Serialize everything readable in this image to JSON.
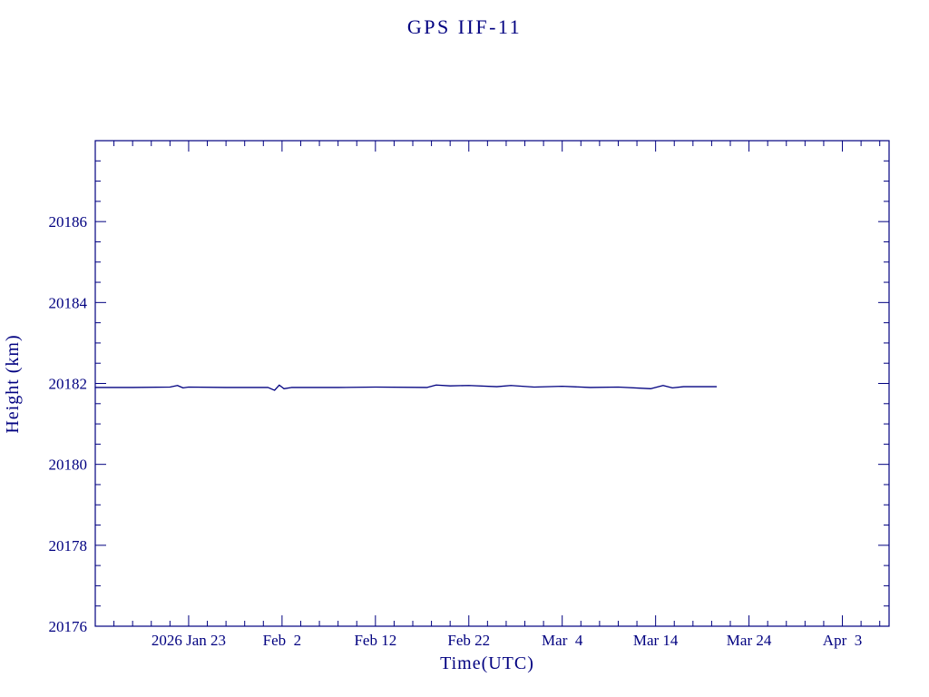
{
  "page": {
    "background": "#ffffff"
  },
  "chart_data": {
    "type": "line",
    "title": "GPS IIF-11",
    "xlabel": "Time(UTC)",
    "ylabel": "Height (km)",
    "line_color": "#000080",
    "axis_color": "#000080",
    "grid": false,
    "legend": "none",
    "xlim_days": [
      0,
      85
    ],
    "ylim": [
      20176,
      20188
    ],
    "x_axis": {
      "tick_days": [
        10,
        20,
        30,
        40,
        50,
        60,
        70,
        80
      ],
      "tick_labels": [
        "2026 Jan 23",
        "Feb  2",
        "Feb 12",
        "Feb 22",
        "Mar  4",
        "Mar 14",
        "Mar 24",
        "Apr  3"
      ],
      "minor_step_days": 2
    },
    "y_axis": {
      "ticks": [
        20176,
        20178,
        20180,
        20182,
        20184,
        20186
      ],
      "tick_labels": [
        "20176",
        "20178",
        "20180",
        "20182",
        "20184",
        "20186"
      ],
      "minor_step": 0.5
    },
    "series": [
      {
        "name": "height-km",
        "x": [
          0,
          4,
          8,
          8.8,
          9.4,
          10,
          14,
          18.5,
          19.2,
          19.7,
          20.2,
          21,
          26,
          30,
          35.5,
          36.5,
          38,
          40,
          43,
          44.5,
          47,
          50,
          53,
          56,
          59.5,
          60.8,
          61.8,
          63,
          66.5
        ],
        "y": [
          20181.9,
          20181.9,
          20181.91,
          20181.95,
          20181.89,
          20181.91,
          20181.9,
          20181.9,
          20181.83,
          20181.96,
          20181.87,
          20181.9,
          20181.9,
          20181.91,
          20181.9,
          20181.96,
          20181.94,
          20181.95,
          20181.92,
          20181.95,
          20181.91,
          20181.93,
          20181.9,
          20181.91,
          20181.87,
          20181.95,
          20181.89,
          20181.92,
          20181.92
        ]
      }
    ],
    "mean_height_km": 20181.9
  }
}
